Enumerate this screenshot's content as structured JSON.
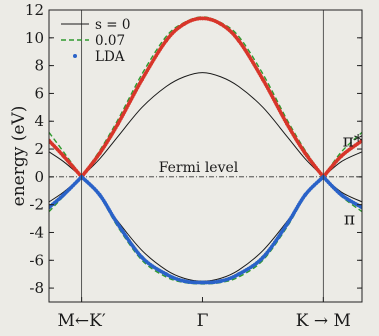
{
  "chart_data": {
    "type": "line",
    "ylabel": "energy (eV)",
    "ylim": [
      -9,
      12
    ],
    "yticks": [
      -8,
      -6,
      -4,
      -2,
      0,
      2,
      4,
      6,
      8,
      10,
      12
    ],
    "xticks": [
      {
        "x": 0.0,
        "label": "M←K′"
      },
      {
        "x": 1.0,
        "label": "Γ"
      },
      {
        "x": 2.0,
        "label": "K → M"
      }
    ],
    "xlim": [
      -0.27,
      2.32
    ],
    "k_points_x": [
      0.0,
      1.0,
      2.0
    ],
    "fermi_level": {
      "y": 0,
      "label": "Fermi level"
    },
    "band_labels": [
      {
        "text": "π*",
        "x": 2.16,
        "y": 2.6
      },
      {
        "text": "π",
        "x": 2.17,
        "y": -3.0
      }
    ],
    "legend": {
      "position": "top-left",
      "entries": [
        "s = 0",
        "0.07",
        "LDA"
      ]
    },
    "series": [
      {
        "name": "s = 0",
        "style": "solid",
        "color": "#1a1a1a",
        "x": [
          -0.27,
          -0.15,
          0,
          0.15,
          0.3,
          0.5,
          0.7,
          0.85,
          1.0,
          1.15,
          1.3,
          1.5,
          1.7,
          1.85,
          2.0,
          2.15,
          2.32
        ],
        "y_upper": [
          1.8,
          1.1,
          0,
          1.3,
          2.9,
          5.0,
          6.5,
          7.2,
          7.5,
          7.2,
          6.5,
          5.0,
          2.9,
          1.3,
          0,
          1.1,
          1.8
        ],
        "y_lower": [
          -1.8,
          -1.1,
          0,
          -1.4,
          -3.2,
          -5.3,
          -6.7,
          -7.3,
          -7.5,
          -7.3,
          -6.7,
          -5.3,
          -3.2,
          -1.4,
          0,
          -1.1,
          -1.8
        ]
      },
      {
        "name": "0.07",
        "style": "dashed",
        "color": "#2e9a2e",
        "x": [
          -0.27,
          -0.15,
          0,
          0.15,
          0.3,
          0.5,
          0.7,
          0.85,
          1.0,
          1.15,
          1.3,
          1.5,
          1.7,
          1.85,
          2.0,
          2.15,
          2.32
        ],
        "y_upper": [
          3.2,
          1.8,
          0,
          1.9,
          4.1,
          7.4,
          10.1,
          11.1,
          11.5,
          11.1,
          10.1,
          7.4,
          4.1,
          1.9,
          0,
          1.8,
          3.2
        ],
        "y_lower": [
          -2.5,
          -1.4,
          0,
          -1.4,
          -3.6,
          -6.0,
          -7.2,
          -7.6,
          -7.7,
          -7.6,
          -7.2,
          -6.0,
          -3.6,
          -1.4,
          0,
          -1.4,
          -2.5
        ]
      },
      {
        "name": "LDA",
        "style": "dots",
        "colors": {
          "upper": "#d8352a",
          "lower": "#2a62c8"
        },
        "x": [
          -0.27,
          -0.15,
          0,
          0.15,
          0.3,
          0.5,
          0.7,
          0.85,
          1.0,
          1.15,
          1.3,
          1.5,
          1.7,
          1.85,
          2.0,
          2.15,
          2.32
        ],
        "y_upper": [
          2.6,
          1.5,
          0,
          1.7,
          3.8,
          7.0,
          9.8,
          11.0,
          11.4,
          11.0,
          9.8,
          7.0,
          3.8,
          1.7,
          0,
          1.5,
          2.6
        ],
        "y_lower": [
          -2.2,
          -1.3,
          0,
          -1.3,
          -3.4,
          -5.8,
          -7.0,
          -7.5,
          -7.6,
          -7.5,
          -7.0,
          -5.8,
          -3.4,
          -1.3,
          0,
          -1.3,
          -2.2
        ]
      }
    ]
  }
}
